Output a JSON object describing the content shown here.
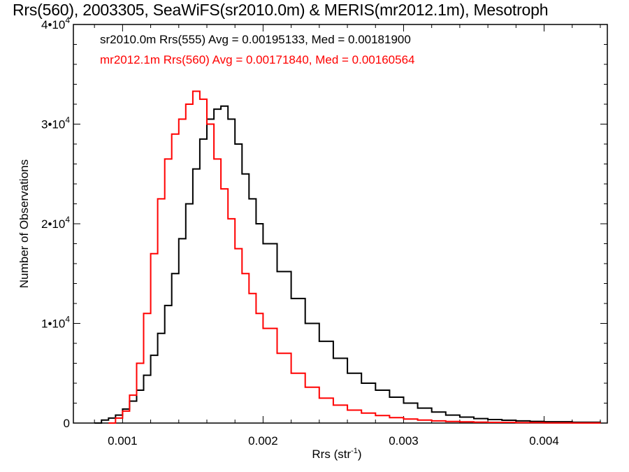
{
  "chart_data": {
    "type": "line",
    "title": "Rrs(560), 2003305, SeaWiFS(sr2010.0m) & MERIS(mr2012.1m), Mesotroph",
    "xlabel": "Rrs (str",
    "xlabel_sup": "-1",
    "xlabel_end": ")",
    "ylabel": "Number of Observations",
    "xlim": [
      0.00065,
      0.00445
    ],
    "ylim": [
      0,
      40000
    ],
    "x_ticks": [
      {
        "value": 0.001,
        "label": "0.001"
      },
      {
        "value": 0.002,
        "label": "0.002"
      },
      {
        "value": 0.003,
        "label": "0.003"
      },
      {
        "value": 0.004,
        "label": "0.004"
      }
    ],
    "y_ticks": [
      {
        "value": 0,
        "base": "0",
        "exp": ""
      },
      {
        "value": 10000,
        "base": "1•10",
        "exp": "4"
      },
      {
        "value": 20000,
        "base": "2•10",
        "exp": "4"
      },
      {
        "value": 30000,
        "base": "3•10",
        "exp": "4"
      },
      {
        "value": 40000,
        "base": "4•10",
        "exp": "4"
      }
    ],
    "legend": [
      {
        "text": "sr2010.0m Rrs(555) Avg = 0.00195133, Med = 0.00181900",
        "color": "#000000"
      },
      {
        "text": "mr2012.1m Rrs(560) Avg = 0.00171840, Med = 0.00160564",
        "color": "#ff0000"
      }
    ],
    "series": [
      {
        "color": "#000000",
        "x": [
          0.0008,
          0.00085,
          0.0009,
          0.00095,
          0.001,
          0.00105,
          0.0011,
          0.00115,
          0.0012,
          0.00125,
          0.0013,
          0.00135,
          0.0014,
          0.00145,
          0.0015,
          0.00155,
          0.0016,
          0.00165,
          0.0017,
          0.00175,
          0.0018,
          0.00185,
          0.0019,
          0.00195,
          0.002,
          0.0021,
          0.0022,
          0.0023,
          0.0024,
          0.0025,
          0.0026,
          0.0027,
          0.0028,
          0.0029,
          0.003,
          0.0031,
          0.0032,
          0.0033,
          0.0034,
          0.0035,
          0.0036,
          0.0037,
          0.0038,
          0.0039,
          0.004,
          0.0042,
          0.0044
        ],
        "values": [
          0,
          300,
          500,
          800,
          1400,
          2200,
          3300,
          4800,
          6800,
          9000,
          11800,
          15000,
          18500,
          22000,
          25500,
          28500,
          30500,
          31500,
          31800,
          30500,
          28000,
          25000,
          22500,
          20000,
          18000,
          15200,
          12500,
          10000,
          8200,
          6500,
          5000,
          4000,
          3300,
          2600,
          2000,
          1500,
          1100,
          800,
          600,
          450,
          350,
          280,
          220,
          170,
          130,
          80,
          50
        ]
      },
      {
        "color": "#ff0000",
        "x": [
          0.0009,
          0.00095,
          0.001,
          0.00105,
          0.0011,
          0.00115,
          0.0012,
          0.00125,
          0.0013,
          0.00135,
          0.0014,
          0.00145,
          0.0015,
          0.00155,
          0.0016,
          0.00165,
          0.0017,
          0.00175,
          0.0018,
          0.00185,
          0.0019,
          0.00195,
          0.002,
          0.0021,
          0.0022,
          0.0023,
          0.0024,
          0.0025,
          0.0026,
          0.0027,
          0.0028,
          0.0029,
          0.003,
          0.0031,
          0.0032,
          0.0033,
          0.0034,
          0.0035,
          0.0036,
          0.0038,
          0.004,
          0.0042,
          0.0044
        ],
        "values": [
          0,
          500,
          1200,
          2800,
          6000,
          11000,
          17000,
          22500,
          26500,
          29000,
          30500,
          32000,
          33300,
          32500,
          30000,
          26500,
          23500,
          20500,
          17500,
          15000,
          13000,
          11000,
          9500,
          7000,
          5000,
          3600,
          2500,
          1800,
          1300,
          1000,
          750,
          550,
          400,
          300,
          220,
          160,
          120,
          90,
          70,
          40,
          20,
          10,
          0
        ]
      }
    ]
  }
}
